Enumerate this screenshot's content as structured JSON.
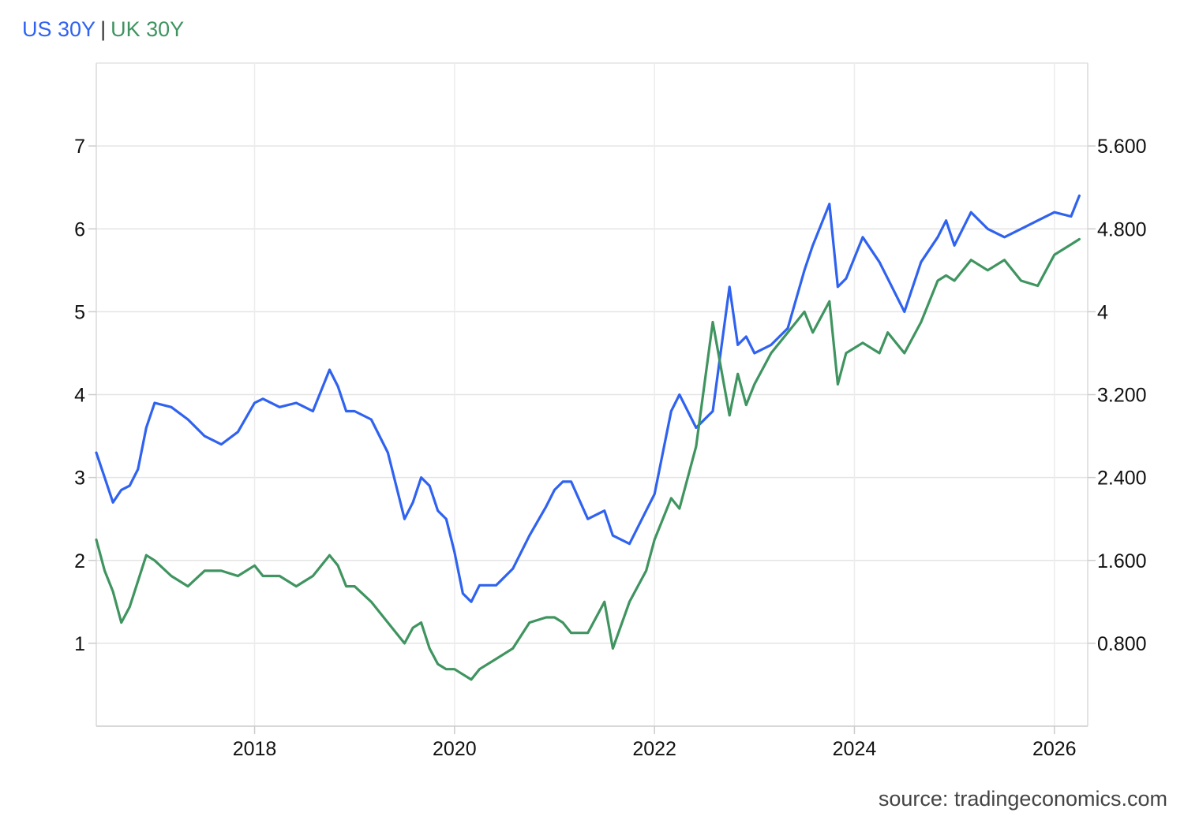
{
  "chart_data": {
    "type": "line",
    "title": "",
    "legend": {
      "placement": "top-left",
      "separator": "|",
      "entries": [
        {
          "name": "US 30Y",
          "color": "#2f62f0"
        },
        {
          "name": "UK 30Y",
          "color": "#3f9460"
        }
      ]
    },
    "x_axis": {
      "type": "date",
      "range": [
        "2016-06-01",
        "2026-05-01"
      ],
      "tick_labels": [
        "2018",
        "2020",
        "2022",
        "2024",
        "2026"
      ]
    },
    "y_axis_left": {
      "series": "US 30Y",
      "range": [
        0,
        8
      ],
      "tick_labels": [
        "1",
        "2",
        "3",
        "4",
        "5",
        "6",
        "7"
      ]
    },
    "y_axis_right": {
      "series": "UK 30Y",
      "range": [
        0,
        6.4
      ],
      "tick_labels": [
        "0.800",
        "1.600",
        "2.400",
        "3.200",
        "4",
        "4.800",
        "5.600"
      ]
    },
    "grid": true,
    "series": [
      {
        "name": "US 30Y",
        "axis": "left",
        "color": "#2f62f0",
        "x": [
          "2016-06",
          "2016-07",
          "2016-08",
          "2016-09",
          "2016-10",
          "2016-11",
          "2016-12",
          "2017-01",
          "2017-03",
          "2017-05",
          "2017-07",
          "2017-09",
          "2017-11",
          "2018-01",
          "2018-02",
          "2018-04",
          "2018-06",
          "2018-08",
          "2018-10",
          "2018-11",
          "2018-12",
          "2019-01",
          "2019-03",
          "2019-05",
          "2019-07",
          "2019-08",
          "2019-09",
          "2019-10",
          "2019-11",
          "2019-12",
          "2020-01",
          "2020-02",
          "2020-03",
          "2020-04",
          "2020-06",
          "2020-08",
          "2020-10",
          "2020-12",
          "2021-01",
          "2021-02",
          "2021-03",
          "2021-05",
          "2021-07",
          "2021-08",
          "2021-10",
          "2021-12",
          "2022-01",
          "2022-03",
          "2022-04",
          "2022-06",
          "2022-08",
          "2022-10",
          "2022-11",
          "2022-12",
          "2023-01",
          "2023-03",
          "2023-05",
          "2023-07",
          "2023-08",
          "2023-10",
          "2023-11",
          "2023-12",
          "2024-02",
          "2024-04",
          "2024-05",
          "2024-07",
          "2024-09",
          "2024-11",
          "2024-12",
          "2025-01",
          "2025-03",
          "2025-05",
          "2025-07",
          "2025-09",
          "2025-11",
          "2026-01",
          "2026-03",
          "2026-04"
        ],
        "values": [
          3.3,
          3.0,
          2.7,
          2.85,
          2.9,
          3.1,
          3.6,
          3.9,
          3.85,
          3.7,
          3.5,
          3.4,
          3.55,
          3.9,
          3.95,
          3.85,
          3.9,
          3.8,
          4.3,
          4.1,
          3.8,
          3.8,
          3.7,
          3.3,
          2.5,
          2.7,
          3.0,
          2.9,
          2.6,
          2.5,
          2.1,
          1.6,
          1.5,
          1.7,
          1.7,
          1.9,
          2.3,
          2.65,
          2.85,
          2.95,
          2.95,
          2.5,
          2.6,
          2.3,
          2.2,
          2.6,
          2.8,
          3.8,
          4.0,
          3.6,
          3.8,
          5.3,
          4.6,
          4.7,
          4.5,
          4.6,
          4.8,
          5.5,
          5.8,
          6.3,
          5.3,
          5.4,
          5.9,
          5.6,
          5.4,
          5.0,
          5.6,
          5.9,
          6.1,
          5.8,
          6.2,
          6.0,
          5.9,
          6.0,
          6.1,
          6.2,
          6.15,
          6.4
        ]
      },
      {
        "name": "UK 30Y",
        "axis": "right",
        "color": "#3f9460",
        "x": [
          "2016-06",
          "2016-07",
          "2016-08",
          "2016-09",
          "2016-10",
          "2016-11",
          "2016-12",
          "2017-01",
          "2017-03",
          "2017-05",
          "2017-07",
          "2017-09",
          "2017-11",
          "2018-01",
          "2018-02",
          "2018-04",
          "2018-06",
          "2018-08",
          "2018-10",
          "2018-11",
          "2018-12",
          "2019-01",
          "2019-03",
          "2019-05",
          "2019-07",
          "2019-08",
          "2019-09",
          "2019-10",
          "2019-11",
          "2019-12",
          "2020-01",
          "2020-02",
          "2020-03",
          "2020-04",
          "2020-06",
          "2020-08",
          "2020-10",
          "2020-12",
          "2021-01",
          "2021-02",
          "2021-03",
          "2021-05",
          "2021-07",
          "2021-08",
          "2021-10",
          "2021-12",
          "2022-01",
          "2022-03",
          "2022-04",
          "2022-06",
          "2022-08",
          "2022-10",
          "2022-11",
          "2022-12",
          "2023-01",
          "2023-03",
          "2023-05",
          "2023-07",
          "2023-08",
          "2023-10",
          "2023-11",
          "2023-12",
          "2024-02",
          "2024-04",
          "2024-05",
          "2024-07",
          "2024-09",
          "2024-11",
          "2024-12",
          "2025-01",
          "2025-03",
          "2025-05",
          "2025-07",
          "2025-09",
          "2025-11",
          "2026-01",
          "2026-03",
          "2026-04"
        ],
        "values": [
          1.8,
          1.5,
          1.3,
          1.0,
          1.15,
          1.4,
          1.65,
          1.6,
          1.45,
          1.35,
          1.5,
          1.5,
          1.45,
          1.55,
          1.45,
          1.45,
          1.35,
          1.45,
          1.65,
          1.55,
          1.35,
          1.35,
          1.2,
          1.0,
          0.8,
          0.95,
          1.0,
          0.75,
          0.6,
          0.55,
          0.55,
          0.5,
          0.45,
          0.55,
          0.65,
          0.75,
          1.0,
          1.05,
          1.05,
          1.0,
          0.9,
          0.9,
          1.2,
          0.75,
          1.2,
          1.5,
          1.8,
          2.2,
          2.1,
          2.7,
          3.9,
          3.0,
          3.4,
          3.1,
          3.3,
          3.6,
          3.8,
          4.0,
          3.8,
          4.1,
          3.3,
          3.6,
          3.7,
          3.6,
          3.8,
          3.6,
          3.9,
          4.3,
          4.35,
          4.3,
          4.5,
          4.4,
          4.5,
          4.3,
          4.25,
          4.55,
          4.65,
          4.7
        ]
      }
    ]
  },
  "source": "source: tradingeconomics.com"
}
